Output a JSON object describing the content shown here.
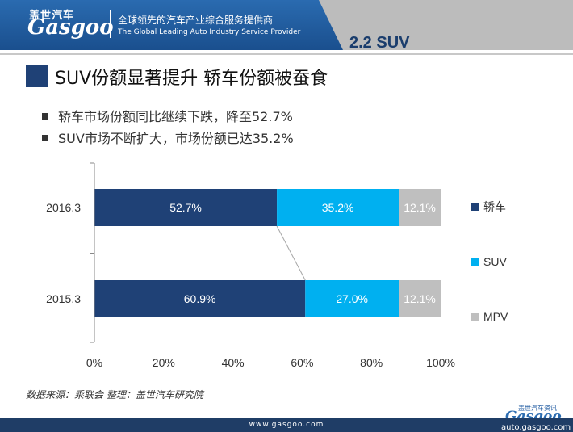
{
  "header": {
    "logo_cn": "盖世汽车",
    "logo_word": "Gasgoo",
    "tagline_cn": "全球领先的汽车产业综合服务提供商",
    "tagline_en": "The Global Leading Auto Industry Service Provider",
    "section": "2.2  SUV",
    "accent_color": "#1a4f8e"
  },
  "title": "SUV份额显著提升 轿车份额被蚕食",
  "bullets": [
    "轿车市场份额同比继续下跌，降至52.7%",
    "SUV市场不断扩大，市场份额已达35.2%"
  ],
  "chart_data": {
    "type": "bar",
    "orientation": "horizontal",
    "stacked": "percent",
    "categories": [
      "2016.3",
      "2015.3"
    ],
    "series": [
      {
        "name": "轿车",
        "values": [
          52.7,
          60.9
        ],
        "labels": [
          "52.7%",
          "60.9%"
        ],
        "color": "#1f4176"
      },
      {
        "name": "SUV",
        "values": [
          35.2,
          27.0
        ],
        "labels": [
          "35.2%",
          "27.0%"
        ],
        "color": "#00b0f0"
      },
      {
        "name": "MPV",
        "values": [
          12.1,
          12.1
        ],
        "labels": [
          "12.1%",
          "12.1%"
        ],
        "color": "#bfbfbf"
      }
    ],
    "xlim": [
      0,
      100
    ],
    "xticks": [
      "0%",
      "20%",
      "40%",
      "60%",
      "80%",
      "100%"
    ],
    "legend_position": "right",
    "grid": false
  },
  "source": "数据来源：乘联会     整理：盖世汽车研究院",
  "footer": {
    "url": "www.gasgoo.com",
    "watermark_cn": "盖世汽车资讯",
    "watermark_word": "Gasgoo",
    "watermark_url": "auto.gasgoo.com"
  }
}
